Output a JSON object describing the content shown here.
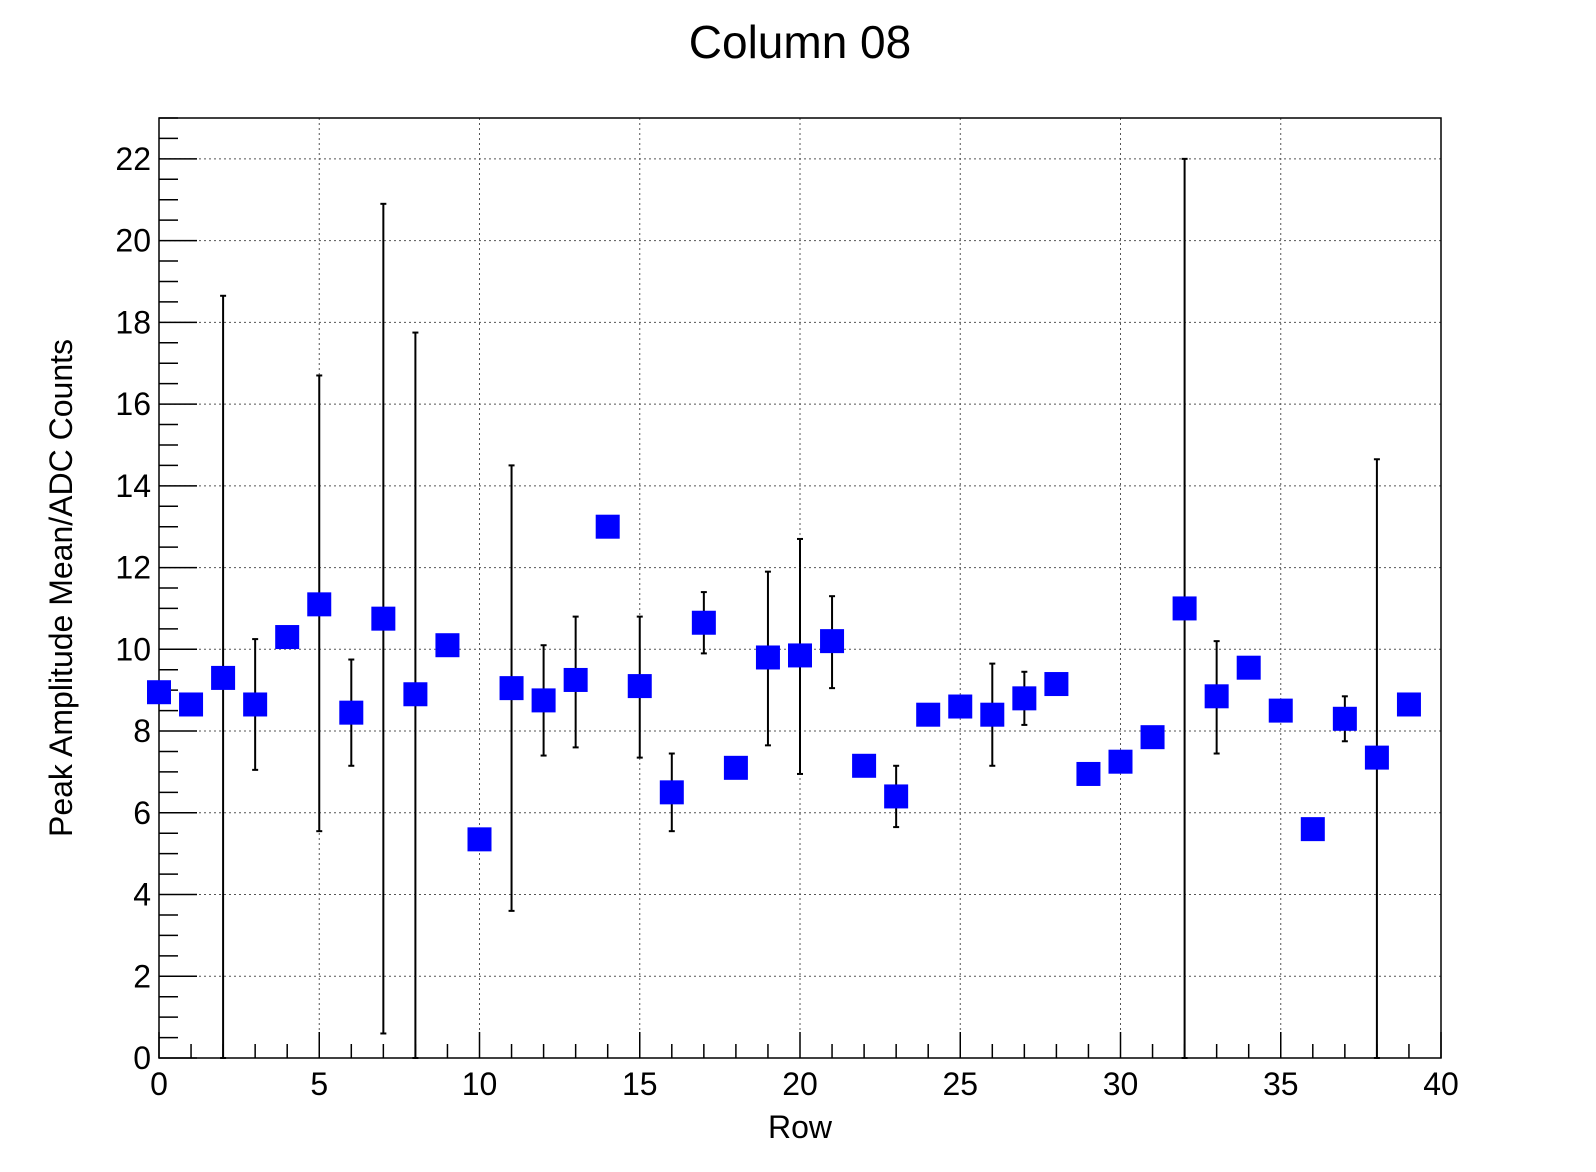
{
  "chart_data": {
    "type": "scatter",
    "title": "Column 08",
    "xlabel": "Row",
    "ylabel": "Peak Amplitude Mean/ADC Counts",
    "xlim": [
      0,
      40
    ],
    "ylim": [
      0,
      23
    ],
    "grid": true,
    "x_ticks": [
      0,
      5,
      10,
      15,
      20,
      25,
      30,
      35,
      40
    ],
    "y_ticks": [
      0,
      2,
      4,
      6,
      8,
      10,
      12,
      14,
      16,
      18,
      20,
      22
    ],
    "marker_color": "#0000ff",
    "errorbar_color": "#000000",
    "x": [
      0,
      1,
      2,
      3,
      4,
      5,
      6,
      7,
      8,
      9,
      10,
      11,
      12,
      13,
      14,
      15,
      16,
      17,
      18,
      19,
      20,
      21,
      22,
      23,
      24,
      25,
      26,
      27,
      28,
      29,
      30,
      31,
      32,
      33,
      34,
      35,
      36,
      37,
      38,
      39
    ],
    "y": [
      8.95,
      8.65,
      9.3,
      8.65,
      10.3,
      11.1,
      8.45,
      10.75,
      8.9,
      10.1,
      5.35,
      9.05,
      8.75,
      9.25,
      13.0,
      9.1,
      6.5,
      10.65,
      7.1,
      9.8,
      9.85,
      10.2,
      7.15,
      6.4,
      8.4,
      8.6,
      8.4,
      8.8,
      9.15,
      6.95,
      7.25,
      7.85,
      11.0,
      8.85,
      9.55,
      8.5,
      5.6,
      8.3,
      7.35,
      8.65
    ],
    "y_err_low": [
      0,
      0,
      9.3,
      1.6,
      0,
      5.55,
      1.3,
      10.15,
      8.9,
      0,
      0,
      5.45,
      1.35,
      1.65,
      0,
      1.75,
      0.95,
      0.75,
      0,
      2.15,
      2.9,
      1.15,
      0,
      0.75,
      0,
      0,
      1.25,
      0.65,
      0,
      0,
      0,
      0,
      11.0,
      1.4,
      0,
      0,
      0,
      0.55,
      7.35,
      0
    ],
    "y_err_high": [
      0,
      0,
      9.35,
      1.6,
      0,
      5.6,
      1.3,
      10.15,
      8.85,
      0,
      0,
      5.45,
      1.35,
      1.55,
      0,
      1.7,
      0.95,
      0.75,
      0,
      2.1,
      2.85,
      1.1,
      0,
      0.75,
      0,
      0,
      1.25,
      0.65,
      0,
      0,
      0,
      0,
      11.0,
      1.35,
      0,
      0,
      0,
      0.55,
      7.3,
      0
    ]
  }
}
